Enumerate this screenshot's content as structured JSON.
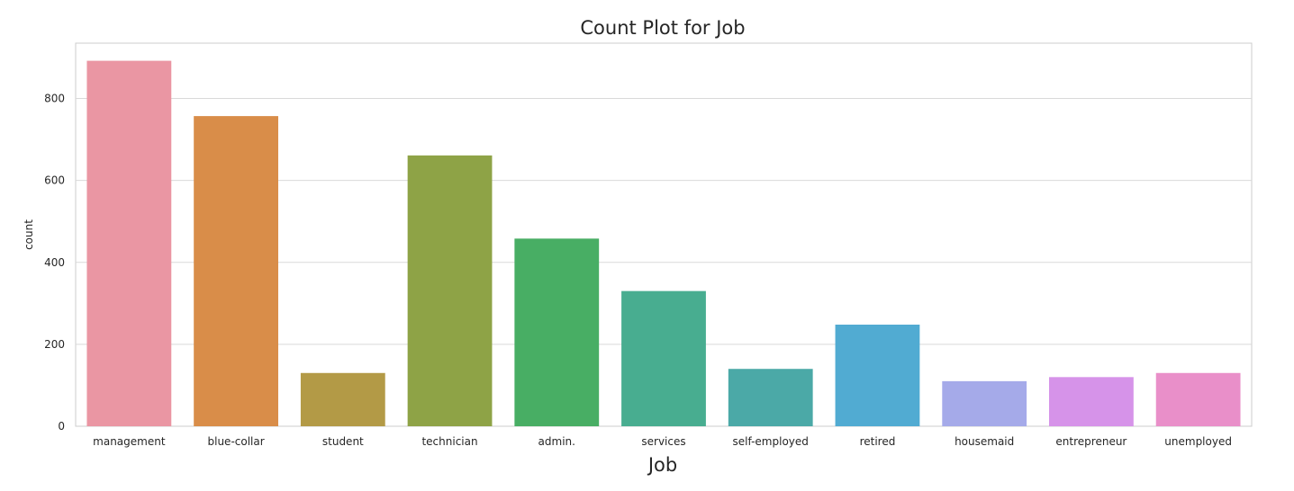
{
  "chart_data": {
    "type": "bar",
    "title": "Count Plot for Job",
    "xlabel": "Job",
    "ylabel": "count",
    "categories": [
      "management",
      "blue-collar",
      "student",
      "technician",
      "admin.",
      "services",
      "self-employed",
      "retired",
      "housemaid",
      "entrepreneur",
      "unemployed"
    ],
    "values": [
      892,
      757,
      130,
      661,
      458,
      330,
      140,
      248,
      110,
      120,
      130
    ],
    "colors": [
      "#ea96a3",
      "#d98d49",
      "#b39a46",
      "#8ea346",
      "#48ae64",
      "#48ad90",
      "#4ba9a7",
      "#51abd2",
      "#a5aae9",
      "#d693e9",
      "#e98fc9"
    ],
    "ylim": [
      0,
      935
    ],
    "yticks": [
      0,
      200,
      400,
      600,
      800
    ],
    "grid": true,
    "legend": "none"
  }
}
